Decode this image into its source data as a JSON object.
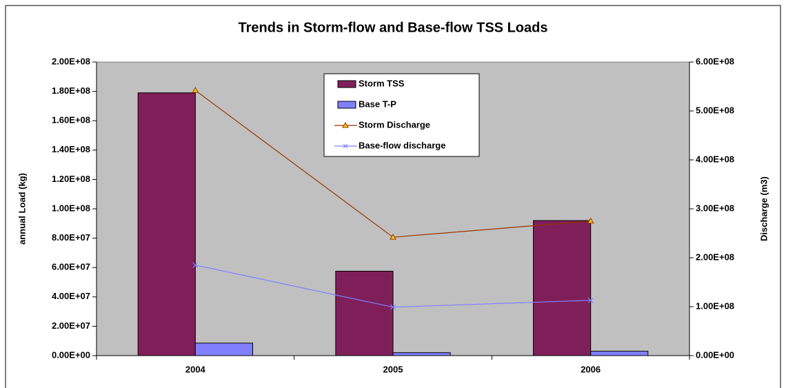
{
  "chart_data": {
    "type": "bar-line",
    "title": "Trends in Storm-flow and Base-flow TSS Loads",
    "y_label": "annual Load (kg)",
    "y2_label": "Discharge (m3)",
    "categories": [
      "2004",
      "2005",
      "2006"
    ],
    "series": [
      {
        "name": "Storm TSS",
        "type": "bar",
        "color": "#7f1f5a",
        "values": [
          179000000,
          57500000,
          92000000
        ]
      },
      {
        "name": "Base T-P",
        "type": "bar",
        "color": "#8080ff",
        "values": [
          8500000,
          2000000,
          3000000
        ]
      },
      {
        "name": "Storm Discharge",
        "type": "line",
        "axis": "y2",
        "color": "#993300",
        "marker": "triangle",
        "values": [
          542000000,
          242000000,
          275000000
        ]
      },
      {
        "name": "Base-flow discharge",
        "type": "line",
        "axis": "y2",
        "color": "#8080ff",
        "marker": "x",
        "values": [
          185000000,
          99000000,
          113000000
        ]
      }
    ],
    "ylim": [
      0,
      200000000
    ],
    "yticks": [
      {
        "value": 0,
        "label": "0.00E+00"
      },
      {
        "value": 20000000,
        "label": "2.00E+07"
      },
      {
        "value": 40000000,
        "label": "4.00E+07"
      },
      {
        "value": 60000000,
        "label": "6.00E+07"
      },
      {
        "value": 80000000,
        "label": "8.00E+07"
      },
      {
        "value": 100000000,
        "label": "1.00E+08"
      },
      {
        "value": 120000000,
        "label": "1.20E+08"
      },
      {
        "value": 140000000,
        "label": "1.40E+08"
      },
      {
        "value": 160000000,
        "label": "1.60E+08"
      },
      {
        "value": 180000000,
        "label": "1.80E+08"
      },
      {
        "value": 200000000,
        "label": "2.00E+08"
      }
    ],
    "y2lim": [
      0,
      600000000
    ],
    "y2ticks": [
      {
        "value": 0,
        "label": "0.00E+00"
      },
      {
        "value": 100000000,
        "label": "1.00E+08"
      },
      {
        "value": 200000000,
        "label": "2.00E+08"
      },
      {
        "value": 300000000,
        "label": "3.00E+08"
      },
      {
        "value": 400000000,
        "label": "4.00E+08"
      },
      {
        "value": 500000000,
        "label": "5.00E+08"
      },
      {
        "value": 600000000,
        "label": "6.00E+08"
      }
    ],
    "plot_background": "#c0c0c0"
  }
}
